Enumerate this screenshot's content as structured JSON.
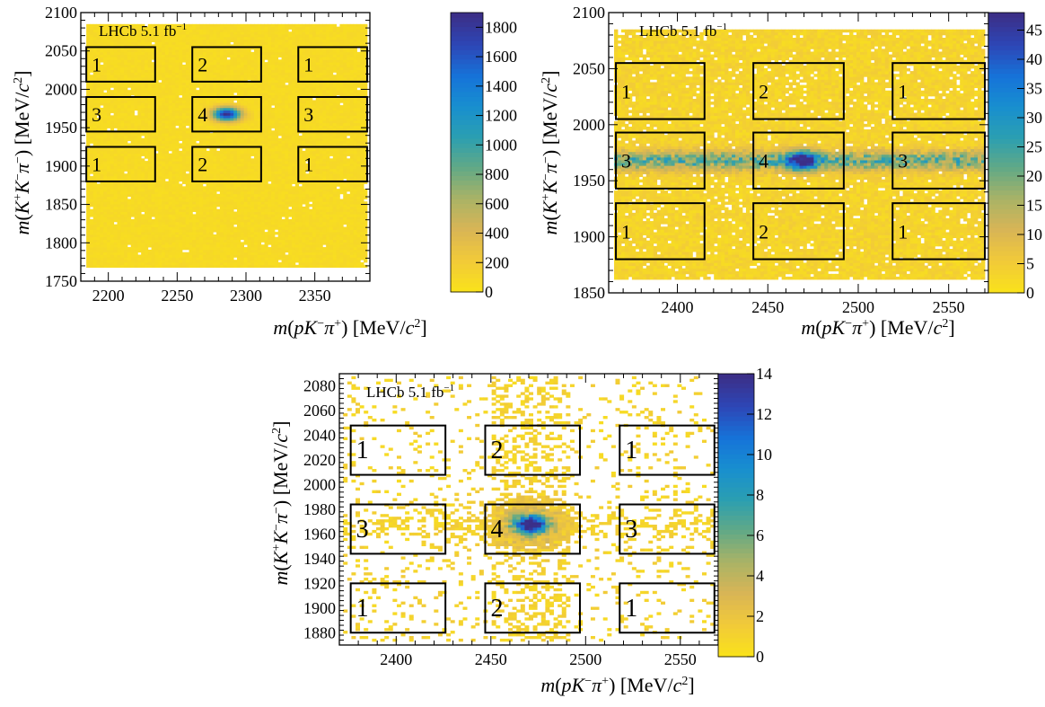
{
  "chart_data": [
    {
      "type": "heatmap",
      "panel": "top-left",
      "label": "LHCb 5.1 fb",
      "label_sup": "−1",
      "xlabel": "m(pK⁻π⁺) [MeV/c²]",
      "ylabel": "m(K⁺K⁻π⁻) [MeV/c²]",
      "xlim": [
        2180,
        2390
      ],
      "ylim": [
        1750,
        2100
      ],
      "xticks": [
        2200,
        2250,
        2300,
        2350
      ],
      "yticks": [
        1750,
        1800,
        1850,
        1900,
        1950,
        2000,
        2050,
        2100
      ],
      "zlim": [
        0,
        1900
      ],
      "zticks": [
        0,
        200,
        400,
        600,
        800,
        1000,
        1200,
        1400,
        1600,
        1800
      ],
      "fill_region": {
        "x": [
          2184,
          2388
        ],
        "y": [
          1768,
          2085
        ]
      },
      "peak": {
        "x": 2286,
        "y": 1968,
        "value": 1850
      },
      "regions": [
        {
          "label": "1",
          "x": [
            2184,
            2234
          ],
          "y": [
            2010,
            2055
          ]
        },
        {
          "label": "2",
          "x": [
            2261,
            2311
          ],
          "y": [
            2010,
            2055
          ]
        },
        {
          "label": "1",
          "x": [
            2338,
            2388
          ],
          "y": [
            2010,
            2055
          ]
        },
        {
          "label": "3",
          "x": [
            2184,
            2234
          ],
          "y": [
            1945,
            1990
          ]
        },
        {
          "label": "4",
          "x": [
            2261,
            2311
          ],
          "y": [
            1945,
            1990
          ]
        },
        {
          "label": "3",
          "x": [
            2338,
            2388
          ],
          "y": [
            1945,
            1990
          ]
        },
        {
          "label": "1",
          "x": [
            2184,
            2234
          ],
          "y": [
            1880,
            1925
          ]
        },
        {
          "label": "2",
          "x": [
            2261,
            2311
          ],
          "y": [
            1880,
            1925
          ]
        },
        {
          "label": "1",
          "x": [
            2338,
            2388
          ],
          "y": [
            1880,
            1925
          ]
        }
      ]
    },
    {
      "type": "heatmap",
      "panel": "top-right",
      "label": "LHCb 5.1 fb",
      "label_sup": "−1",
      "xlabel": "m(pK⁻π⁺) [MeV/c²]",
      "ylabel": "m(K⁺K⁻π⁻) [MeV/c²]",
      "xlim": [
        2362,
        2572
      ],
      "ylim": [
        1850,
        2100
      ],
      "xticks": [
        2400,
        2450,
        2500,
        2550
      ],
      "yticks": [
        1850,
        1900,
        1950,
        2000,
        2050,
        2100
      ],
      "zlim": [
        0,
        48
      ],
      "zticks": [
        0,
        5,
        10,
        15,
        20,
        25,
        30,
        35,
        40,
        45
      ],
      "fill_region": {
        "x": [
          2365,
          2570
        ],
        "y": [
          1862,
          2085
        ]
      },
      "band": {
        "y": 1968,
        "value": 22
      },
      "peak": {
        "x": 2469,
        "y": 1968,
        "value": 46
      },
      "regions": [
        {
          "label": "1",
          "x": [
            2366,
            2415
          ],
          "y": [
            2005,
            2055
          ]
        },
        {
          "label": "2",
          "x": [
            2442,
            2492
          ],
          "y": [
            2005,
            2055
          ]
        },
        {
          "label": "1",
          "x": [
            2519,
            2570
          ],
          "y": [
            2005,
            2055
          ]
        },
        {
          "label": "3",
          "x": [
            2366,
            2415
          ],
          "y": [
            1943,
            1993
          ]
        },
        {
          "label": "4",
          "x": [
            2442,
            2492
          ],
          "y": [
            1943,
            1993
          ]
        },
        {
          "label": "3",
          "x": [
            2519,
            2570
          ],
          "y": [
            1943,
            1993
          ]
        },
        {
          "label": "1",
          "x": [
            2366,
            2415
          ],
          "y": [
            1880,
            1930
          ]
        },
        {
          "label": "2",
          "x": [
            2442,
            2492
          ],
          "y": [
            1880,
            1930
          ]
        },
        {
          "label": "1",
          "x": [
            2519,
            2570
          ],
          "y": [
            1880,
            1930
          ]
        }
      ]
    },
    {
      "type": "heatmap",
      "panel": "bottom",
      "label": "LHCb 5.1 fb",
      "label_sup": "−1",
      "xlabel": "m(pK⁻π⁺) [MeV/c²]",
      "ylabel": "m(K⁺K⁻π⁻) [MeV/c²]",
      "xlim": [
        2370,
        2570
      ],
      "ylim": [
        1870,
        2090
      ],
      "xticks": [
        2400,
        2450,
        2500,
        2550
      ],
      "yticks": [
        1880,
        1900,
        1920,
        1940,
        1960,
        1980,
        2000,
        2020,
        2040,
        2060,
        2080
      ],
      "zlim": [
        0,
        14
      ],
      "zticks": [
        0,
        2,
        4,
        6,
        8,
        10,
        12,
        14
      ],
      "fill_region": {
        "x": [
          2372,
          2568
        ],
        "y": [
          1873,
          2088
        ]
      },
      "band": {
        "y": 1968,
        "value": 1.5
      },
      "peak": {
        "x": 2471,
        "y": 1968,
        "value": 13.5
      },
      "regions": [
        {
          "label": "1",
          "x": [
            2376,
            2426
          ],
          "y": [
            2008,
            2048
          ]
        },
        {
          "label": "2",
          "x": [
            2447,
            2497
          ],
          "y": [
            2008,
            2048
          ]
        },
        {
          "label": "1",
          "x": [
            2518,
            2568
          ],
          "y": [
            2008,
            2048
          ]
        },
        {
          "label": "3",
          "x": [
            2376,
            2426
          ],
          "y": [
            1944,
            1984
          ]
        },
        {
          "label": "4",
          "x": [
            2447,
            2497
          ],
          "y": [
            1944,
            1984
          ]
        },
        {
          "label": "3",
          "x": [
            2518,
            2568
          ],
          "y": [
            1944,
            1984
          ]
        },
        {
          "label": "1",
          "x": [
            2376,
            2426
          ],
          "y": [
            1880,
            1920
          ]
        },
        {
          "label": "2",
          "x": [
            2447,
            2497
          ],
          "y": [
            1880,
            1920
          ]
        },
        {
          "label": "1",
          "x": [
            2518,
            2568
          ],
          "y": [
            1880,
            1920
          ]
        }
      ]
    }
  ],
  "colors": {
    "palette": [
      "#f9e11c",
      "#f1c93a",
      "#d8b556",
      "#a9b366",
      "#62a986",
      "#2b9fb1",
      "#188fcf",
      "#1673d9",
      "#2d47b7",
      "#3b2f88"
    ],
    "region_border": "#000000",
    "axis": "#000000"
  }
}
